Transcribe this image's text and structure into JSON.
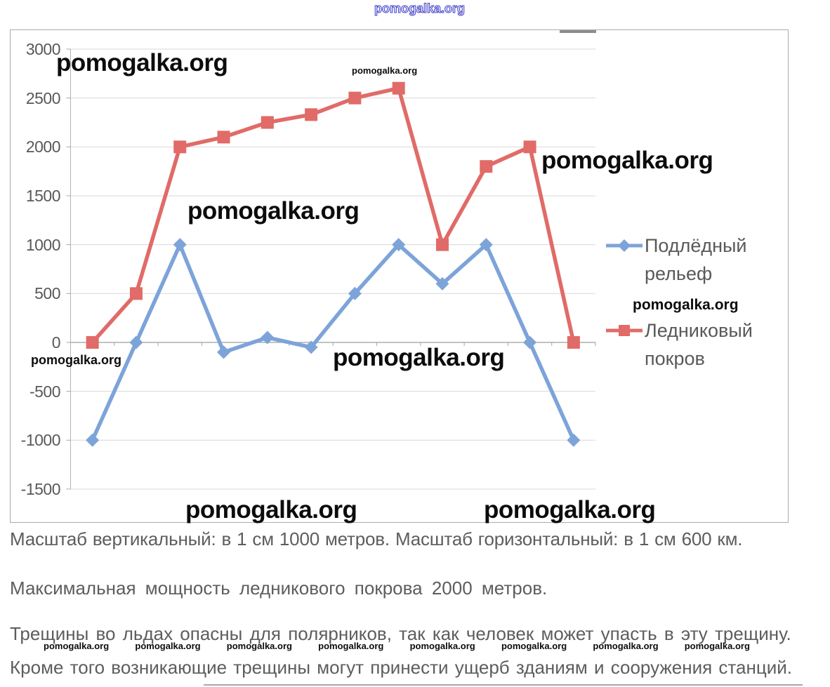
{
  "watermark": {
    "text": "pomogalka.org"
  },
  "chart_data": {
    "type": "line",
    "x": [
      1,
      2,
      3,
      4,
      5,
      6,
      7,
      8,
      9,
      10,
      11,
      12
    ],
    "series": [
      {
        "name": "Подлёдный рельеф",
        "marker": "diamond",
        "color": "#7da4d9",
        "values": [
          -1000,
          0,
          1000,
          -100,
          50,
          -50,
          500,
          1000,
          600,
          1000,
          0,
          -1000
        ]
      },
      {
        "name": "Ледниковый покров",
        "marker": "square",
        "color": "#e06b68",
        "values": [
          0,
          500,
          2000,
          2100,
          2250,
          2330,
          2500,
          2600,
          1000,
          1800,
          2000,
          0
        ]
      }
    ],
    "title": "",
    "xlabel": "",
    "ylabel": "",
    "ylim": [
      -1500,
      3000
    ],
    "ytick_step": 500,
    "yticks": [
      3000,
      2500,
      2000,
      1500,
      1000,
      500,
      0,
      -500,
      -1000,
      -1500
    ],
    "grid": true,
    "legend_position": "right",
    "axis_color": "#a6a6a6",
    "grid_color": "#d9d9d9",
    "tick_label_color": "#595959"
  },
  "notes": {
    "line1": "Масштаб вертикальный: в 1 см 1000 метров. Масштаб горизонтальный: в 1 см 600 км.",
    "line2": "Максимальная мощность ледникового покрова 2000 метров.",
    "line3": "Трещины во льдах опасны для полярников, так как человек может упасть в эту трещину.",
    "line4": "Кроме того возникающие трещины могут принести ущерб зданиям и сооружения станций."
  }
}
